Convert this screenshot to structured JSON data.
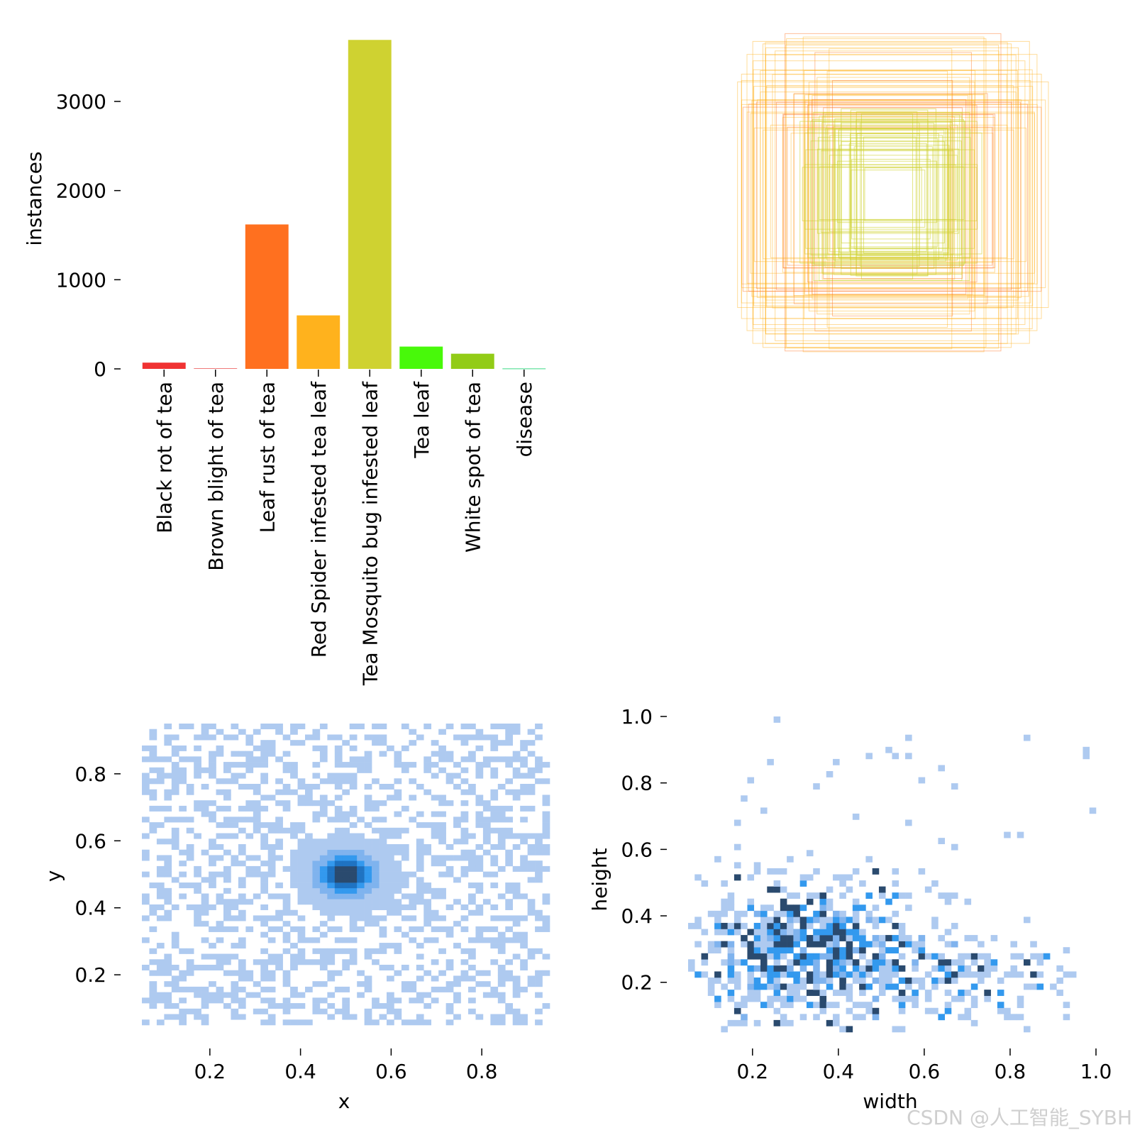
{
  "watermark": "CSDN @人工智能_SYBH",
  "chart_data": [
    {
      "panel": "top-left",
      "type": "bar",
      "ylabel": "instances",
      "ylim": [
        0,
        3700
      ],
      "yticks": [
        0,
        1000,
        2000,
        3000
      ],
      "categories": [
        "Black rot of tea",
        "Brown blight of tea",
        "Leaf rust of tea",
        "Red Spider infested tea leaf",
        "Tea Mosquito bug infested leaf",
        "Tea leaf",
        "White spot of tea",
        "disease"
      ],
      "values": [
        70,
        8,
        1620,
        600,
        3690,
        250,
        170,
        5
      ],
      "colors": [
        "#f03232",
        "#f07a7a",
        "#ff701f",
        "#ffb21d",
        "#cfd231",
        "#48f90a",
        "#92cc17",
        "#3ddb86"
      ]
    },
    {
      "panel": "top-right",
      "type": "bounding-box-overlay",
      "description": "Overlay of label bounding boxes centered on the same point",
      "box_colors": [
        "#ffb21d",
        "#cfd231",
        "#ff701f"
      ]
    },
    {
      "panel": "bottom-left",
      "type": "heatmap",
      "xlabel": "x",
      "ylabel": "y",
      "xlim": [
        0.05,
        0.95
      ],
      "ylim": [
        0.05,
        0.95
      ],
      "xticks": [
        "0.2",
        "0.4",
        "0.6",
        "0.8"
      ],
      "yticks": [
        "0.2",
        "0.4",
        "0.6",
        "0.8"
      ],
      "peak": [
        0.5,
        0.5
      ]
    },
    {
      "panel": "bottom-right",
      "type": "heatmap",
      "xlabel": "width",
      "ylabel": "height",
      "xlim": [
        0.05,
        1.0
      ],
      "ylim": [
        0.05,
        1.0
      ],
      "xticks": [
        "0.2",
        "0.4",
        "0.6",
        "0.8",
        "1.0"
      ],
      "yticks": [
        "0.2",
        "0.4",
        "0.6",
        "0.8",
        "1.0"
      ]
    }
  ]
}
